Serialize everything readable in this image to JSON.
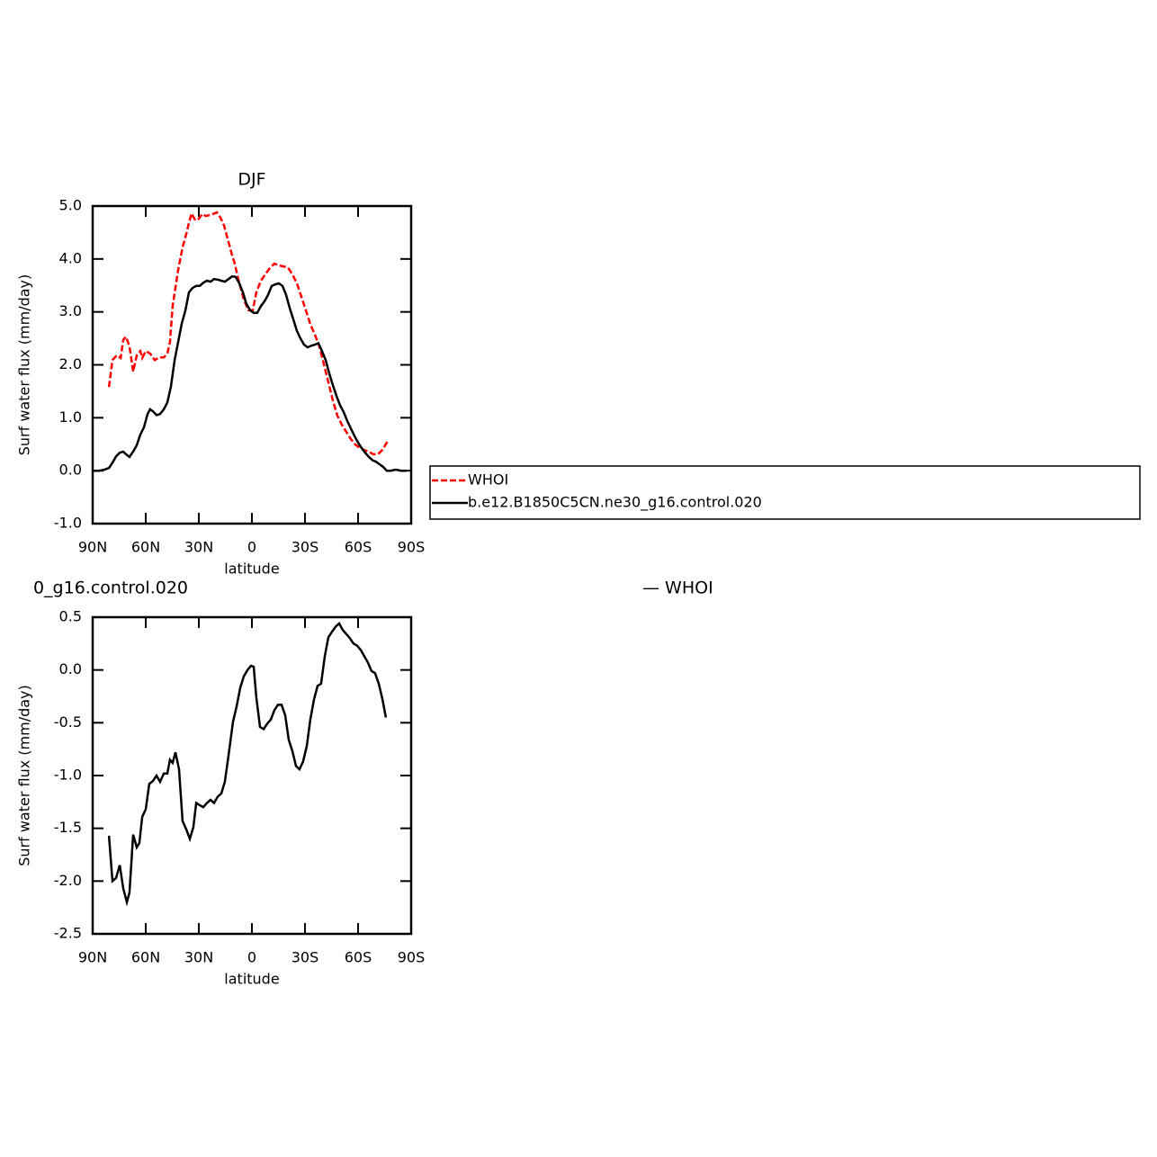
{
  "chart_data": [
    {
      "type": "line",
      "title": "DJF",
      "xlabel": "latitude",
      "ylabel": "Surf water flux (mm/day)",
      "xlim": [
        90,
        -90
      ],
      "ylim": [
        -1,
        5
      ],
      "xticks": [
        {
          "value": 90,
          "label": "90N"
        },
        {
          "value": 60,
          "label": "60N"
        },
        {
          "value": 30,
          "label": "30N"
        },
        0,
        {
          "value": -30,
          "label": "30S"
        },
        {
          "value": -60,
          "label": "60S"
        },
        {
          "value": -90,
          "label": "90S"
        }
      ],
      "yticks": [
        {
          "value": -1,
          "label": "-1.0"
        },
        {
          "value": 0,
          "label": "0.0"
        },
        {
          "value": 1,
          "label": "1.0"
        },
        {
          "value": 2,
          "label": "2.0"
        },
        {
          "value": 3,
          "label": "3.0"
        },
        {
          "value": 4,
          "label": "4.0"
        },
        {
          "value": 5,
          "label": "5.0"
        }
      ],
      "legend_loc": "right",
      "series": [
        {
          "name": "WHOI",
          "color": "#ff0000",
          "linestyle": "dashed",
          "x": [
            80.8,
            78.8,
            76.3,
            74.2,
            72.7,
            71.2,
            69.2,
            67.1,
            65.1,
            63.1,
            62.0,
            60.0,
            57.5,
            54.9,
            52.4,
            49.8,
            47.8,
            46.3,
            44.8,
            41.7,
            39.2,
            37.1,
            35.6,
            34.1,
            32.0,
            30.0,
            28.0,
            26.0,
            23.9,
            21.9,
            19.8,
            17.8,
            15.8,
            13.8,
            11.7,
            9.7,
            7.1,
            4.6,
            2.0,
            -0.5,
            -2.5,
            -5.1,
            -7.6,
            -10.2,
            -12.7,
            -15.2,
            -17.8,
            -20.3,
            -22.9,
            -25.4,
            -28.0,
            -30.5,
            -33.0,
            -35.6,
            -38.1,
            -40.7,
            -43.2,
            -45.7,
            -48.3,
            -50.8,
            -53.4,
            -55.9,
            -58.5,
            -61.0,
            -63.5,
            -66.1,
            -68.6,
            -71.2,
            -73.7,
            -76.8
          ],
          "values": [
            1.58,
            2.09,
            2.18,
            2.13,
            2.47,
            2.53,
            2.35,
            1.87,
            2.18,
            2.26,
            2.13,
            2.26,
            2.21,
            2.09,
            2.14,
            2.14,
            2.21,
            2.43,
            3.11,
            3.79,
            4.22,
            4.47,
            4.68,
            4.86,
            4.73,
            4.76,
            4.85,
            4.81,
            4.83,
            4.85,
            4.88,
            4.78,
            4.64,
            4.39,
            4.13,
            3.91,
            3.54,
            3.23,
            3.03,
            3.03,
            3.37,
            3.59,
            3.71,
            3.83,
            3.91,
            3.88,
            3.86,
            3.84,
            3.71,
            3.54,
            3.28,
            3.03,
            2.77,
            2.57,
            2.35,
            2.01,
            1.67,
            1.33,
            1.04,
            0.87,
            0.73,
            0.6,
            0.49,
            0.43,
            0.39,
            0.36,
            0.31,
            0.31,
            0.39,
            0.56
          ]
        },
        {
          "name": "b.e12.B1850C5CN.ne30_g16.control.020",
          "color": "#000000",
          "linestyle": "solid",
          "x": [
            90,
            86.4,
            83.4,
            80.8,
            78.8,
            76.8,
            74.7,
            72.7,
            71.2,
            69.2,
            67.1,
            65.1,
            63.1,
            61.0,
            59.0,
            57.5,
            55.9,
            53.9,
            51.9,
            49.8,
            47.8,
            45.8,
            43.7,
            41.7,
            39.7,
            37.6,
            35.6,
            33.6,
            31.5,
            29.5,
            27.5,
            25.4,
            23.4,
            21.4,
            19.3,
            17.3,
            15.3,
            13.2,
            11.2,
            9.2,
            7.1,
            5.1,
            3.1,
            1.0,
            -1.0,
            -3.0,
            -5.1,
            -7.1,
            -9.1,
            -11.2,
            -13.2,
            -15.2,
            -17.3,
            -19.3,
            -21.3,
            -23.4,
            -25.4,
            -27.4,
            -29.5,
            -31.5,
            -33.5,
            -35.6,
            -37.6,
            -39.6,
            -41.7,
            -43.7,
            -45.7,
            -47.8,
            -49.8,
            -51.8,
            -53.9,
            -55.9,
            -57.9,
            -60.0,
            -62.0,
            -64.0,
            -66.1,
            -68.1,
            -70.1,
            -72.2,
            -74.2,
            -76.2,
            -78.3,
            -81.3,
            -84.4,
            -87.4
          ],
          "values": [
            0,
            0,
            0.02,
            0.05,
            0.15,
            0.27,
            0.34,
            0.36,
            0.31,
            0.26,
            0.36,
            0.48,
            0.68,
            0.82,
            1.07,
            1.16,
            1.12,
            1.05,
            1.07,
            1.16,
            1.29,
            1.58,
            2.09,
            2.43,
            2.77,
            3.03,
            3.37,
            3.45,
            3.49,
            3.49,
            3.55,
            3.59,
            3.57,
            3.62,
            3.61,
            3.59,
            3.57,
            3.62,
            3.67,
            3.66,
            3.54,
            3.37,
            3.15,
            3.03,
            2.98,
            2.98,
            3.11,
            3.2,
            3.32,
            3.49,
            3.52,
            3.54,
            3.49,
            3.32,
            3.08,
            2.86,
            2.64,
            2.5,
            2.38,
            2.33,
            2.36,
            2.38,
            2.41,
            2.26,
            2.09,
            1.84,
            1.62,
            1.41,
            1.24,
            1.11,
            0.94,
            0.8,
            0.66,
            0.53,
            0.43,
            0.34,
            0.26,
            0.2,
            0.17,
            0.12,
            0.07,
            0,
            0,
            0.02,
            0,
            0
          ]
        }
      ]
    },
    {
      "type": "line",
      "title": "0_g16.control.020",
      "title_right": "— WHOI",
      "xlabel": "latitude",
      "ylabel": "Surf water flux (mm/day)",
      "xlim": [
        90,
        -90
      ],
      "ylim": [
        -2.5,
        0.5
      ],
      "xticks": [
        {
          "value": 90,
          "label": "90N"
        },
        {
          "value": 60,
          "label": "60N"
        },
        {
          "value": 30,
          "label": "30N"
        },
        0,
        {
          "value": -30,
          "label": "30S"
        },
        {
          "value": -60,
          "label": "60S"
        },
        {
          "value": -90,
          "label": "90S"
        }
      ],
      "yticks": [
        -2.5,
        {
          "value": -2,
          "label": "-2.0"
        },
        -1.5,
        {
          "value": -1,
          "label": "-1.0"
        },
        -0.5,
        {
          "value": 0,
          "label": "0.0"
        },
        0.5
      ],
      "series": [
        {
          "color": "#000000",
          "linestyle": "solid",
          "x": [
            80.8,
            78.8,
            76.8,
            74.7,
            72.7,
            70.7,
            69.2,
            67.1,
            65.1,
            63.6,
            62.0,
            60.0,
            58.0,
            55.9,
            53.9,
            51.9,
            49.8,
            47.8,
            46.3,
            44.8,
            43.2,
            41.2,
            39.2,
            37.1,
            35.1,
            33.1,
            31.5,
            29.5,
            27.5,
            25.4,
            23.4,
            21.4,
            19.3,
            17.3,
            15.3,
            13.2,
            10.7,
            8.6,
            6.6,
            4.6,
            2.5,
            0.5,
            -1.0,
            -2.5,
            -4.6,
            -6.6,
            -8.6,
            -10.7,
            -12.7,
            -14.7,
            -16.8,
            -18.8,
            -20.8,
            -22.9,
            -24.9,
            -26.9,
            -28.9,
            -31.0,
            -33.0,
            -35.1,
            -37.1,
            -39.1,
            -41.2,
            -43.2,
            -45.2,
            -47.3,
            -49.3,
            -51.3,
            -53.4,
            -55.4,
            -57.4,
            -59.5,
            -61.5,
            -63.5,
            -65.6,
            -67.6,
            -69.6,
            -71.7,
            -73.7,
            -75.7
          ],
          "values": [
            -1.57,
            -2.0,
            -1.97,
            -1.85,
            -2.07,
            -2.2,
            -2.11,
            -1.56,
            -1.68,
            -1.64,
            -1.39,
            -1.32,
            -1.08,
            -1.05,
            -1.0,
            -1.06,
            -0.98,
            -0.98,
            -0.85,
            -0.88,
            -0.78,
            -0.94,
            -1.43,
            -1.51,
            -1.6,
            -1.49,
            -1.26,
            -1.28,
            -1.3,
            -1.26,
            -1.23,
            -1.26,
            -1.2,
            -1.17,
            -1.06,
            -0.81,
            -0.49,
            -0.34,
            -0.17,
            -0.06,
            0,
            0.04,
            0.03,
            -0.26,
            -0.54,
            -0.56,
            -0.51,
            -0.47,
            -0.38,
            -0.33,
            -0.33,
            -0.43,
            -0.66,
            -0.77,
            -0.91,
            -0.94,
            -0.87,
            -0.72,
            -0.47,
            -0.28,
            -0.15,
            -0.13,
            0.13,
            0.31,
            0.36,
            0.41,
            0.44,
            0.38,
            0.34,
            0.3,
            0.25,
            0.23,
            0.19,
            0.13,
            0.07,
            -0.01,
            -0.03,
            -0.13,
            -0.27,
            -0.45
          ]
        }
      ]
    }
  ]
}
